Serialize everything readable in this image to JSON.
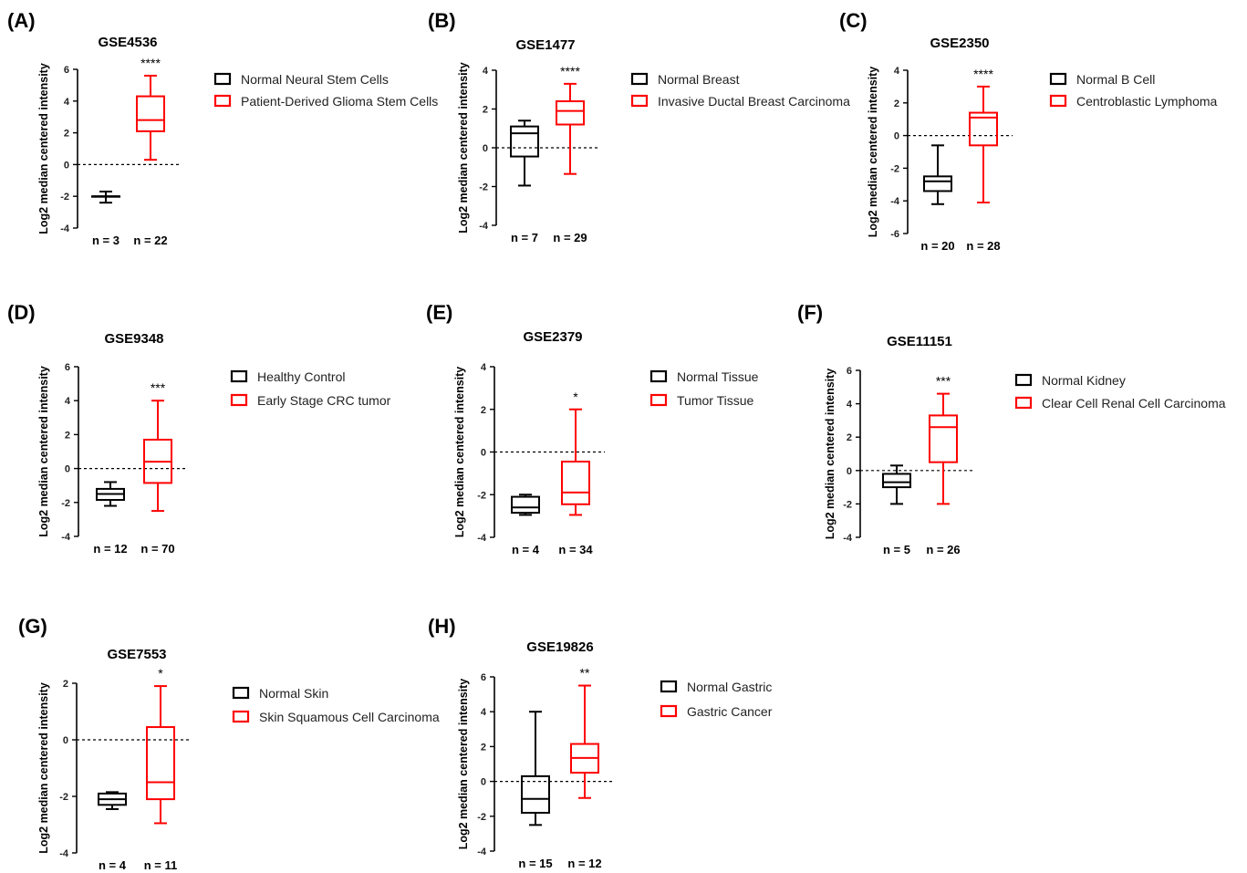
{
  "figure": {
    "colors": {
      "control": "#000000",
      "tumor": "#ff0000"
    }
  },
  "chart_data": [
    {
      "type": "box",
      "panel": "(A)",
      "title": "GSE4536",
      "ylabel": "Log2 median centered intensity",
      "ylim": [
        -4,
        6
      ],
      "yticks": [
        6,
        4,
        2,
        0,
        -2,
        -4
      ],
      "groups": [
        {
          "legend": "Normal Neural Stem Cells",
          "n_label": "n = 3",
          "color": "#000000",
          "whisker_low": -2.4,
          "q1": -2.0,
          "median": -2.0,
          "q3": -2.0,
          "whisker_high": -1.7
        },
        {
          "legend": "Patient-Derived Glioma Stem Cells",
          "n_label": "n = 22",
          "color": "#ff0000",
          "whisker_low": 0.3,
          "q1": 2.1,
          "median": 2.8,
          "q3": 4.3,
          "whisker_high": 5.6
        }
      ],
      "significance": "****"
    },
    {
      "type": "box",
      "panel": "(B)",
      "title": "GSE1477",
      "ylabel": "Log2 median centered intensity",
      "ylim": [
        -4,
        4
      ],
      "yticks": [
        4,
        2,
        0,
        -2,
        -4
      ],
      "groups": [
        {
          "legend": "Normal Breast",
          "n_label": "n = 7",
          "color": "#000000",
          "whisker_low": -1.95,
          "q1": -0.45,
          "median": 0.75,
          "q3": 1.1,
          "whisker_high": 1.4
        },
        {
          "legend": "Invasive Ductal Breast Carcinoma",
          "n_label": "n = 29",
          "color": "#ff0000",
          "whisker_low": -1.35,
          "q1": 1.2,
          "median": 1.9,
          "q3": 2.4,
          "whisker_high": 3.3
        }
      ],
      "significance": "****"
    },
    {
      "type": "box",
      "panel": "(C)",
      "title": "GSE2350",
      "ylabel": "Log2 median centered intensity",
      "ylim": [
        -6,
        4
      ],
      "yticks": [
        4,
        2,
        0,
        -2,
        -4,
        -6
      ],
      "groups": [
        {
          "legend": "Normal B Cell",
          "n_label": "n = 20",
          "color": "#000000",
          "whisker_low": -4.2,
          "q1": -3.4,
          "median": -2.8,
          "q3": -2.5,
          "whisker_high": -0.6
        },
        {
          "legend": "Centroblastic Lymphoma",
          "n_label": "n = 28",
          "color": "#ff0000",
          "whisker_low": -4.1,
          "q1": -0.6,
          "median": 1.1,
          "q3": 1.4,
          "whisker_high": 3.0
        }
      ],
      "significance": "****"
    },
    {
      "type": "box",
      "panel": "(D)",
      "title": "GSE9348",
      "ylabel": "Log2 median centered intensity",
      "ylim": [
        -4,
        6
      ],
      "yticks": [
        6,
        4,
        2,
        0,
        -2,
        -4
      ],
      "groups": [
        {
          "legend": "Healthy Control",
          "n_label": "n = 12",
          "color": "#000000",
          "whisker_low": -2.2,
          "q1": -1.85,
          "median": -1.5,
          "q3": -1.2,
          "whisker_high": -0.8
        },
        {
          "legend": "Early Stage CRC tumor",
          "n_label": "n = 70",
          "color": "#ff0000",
          "whisker_low": -2.5,
          "q1": -0.85,
          "median": 0.4,
          "q3": 1.7,
          "whisker_high": 4.0
        }
      ],
      "significance": "***"
    },
    {
      "type": "box",
      "panel": "(E)",
      "title": "GSE2379",
      "ylabel": "Log2 median centered intensity",
      "ylim": [
        -4,
        4
      ],
      "yticks": [
        4,
        2,
        0,
        -2,
        -4
      ],
      "groups": [
        {
          "legend": "Normal Tissue",
          "n_label": "n = 4",
          "color": "#000000",
          "whisker_low": -2.95,
          "q1": -2.85,
          "median": -2.6,
          "q3": -2.1,
          "whisker_high": -2.0
        },
        {
          "legend": "Tumor Tissue",
          "n_label": "n = 34",
          "color": "#ff0000",
          "whisker_low": -2.95,
          "q1": -2.45,
          "median": -1.9,
          "q3": -0.45,
          "whisker_high": 2.0
        }
      ],
      "significance": "*"
    },
    {
      "type": "box",
      "panel": "(F)",
      "title": "GSE11151",
      "ylabel": "Log2 median centered intensity",
      "ylim": [
        -4,
        6
      ],
      "yticks": [
        6,
        4,
        2,
        0,
        -2,
        -4
      ],
      "groups": [
        {
          "legend": "Normal Kidney",
          "n_label": "n = 5",
          "color": "#000000",
          "whisker_low": -2.0,
          "q1": -1.0,
          "median": -0.7,
          "q3": -0.2,
          "whisker_high": 0.3
        },
        {
          "legend": "Clear Cell Renal Cell Carcinoma",
          "n_label": "n = 26",
          "color": "#ff0000",
          "whisker_low": -2.0,
          "q1": 0.5,
          "median": 2.6,
          "q3": 3.3,
          "whisker_high": 4.6
        }
      ],
      "significance": "***"
    },
    {
      "type": "box",
      "panel": "(G)",
      "title": "GSE7553",
      "ylabel": "Log2 median centered intensity",
      "ylim": [
        -4,
        2
      ],
      "yticks": [
        2,
        0,
        -2,
        -4
      ],
      "groups": [
        {
          "legend": "Normal Skin",
          "n_label": "n = 4",
          "color": "#000000",
          "whisker_low": -2.45,
          "q1": -2.3,
          "median": -2.1,
          "q3": -1.9,
          "whisker_high": -1.85
        },
        {
          "legend": "Skin Squamous Cell Carcinoma",
          "n_label": "n = 11",
          "color": "#ff0000",
          "whisker_low": -2.95,
          "q1": -2.1,
          "median": -1.5,
          "q3": 0.45,
          "whisker_high": 1.9
        }
      ],
      "significance": "*"
    },
    {
      "type": "box",
      "panel": "(H)",
      "title": "GSE19826",
      "ylabel": "Log2 median centered intensity",
      "ylim": [
        -4,
        6
      ],
      "yticks": [
        6,
        4,
        2,
        0,
        -2,
        -4
      ],
      "groups": [
        {
          "legend": "Normal Gastric",
          "n_label": "n = 15",
          "color": "#000000",
          "whisker_low": -2.5,
          "q1": -1.8,
          "median": -1.0,
          "q3": 0.3,
          "whisker_high": 4.0
        },
        {
          "legend": "Gastric Cancer",
          "n_label": "n = 12",
          "color": "#ff0000",
          "whisker_low": -0.95,
          "q1": 0.5,
          "median": 1.35,
          "q3": 2.15,
          "whisker_high": 5.5
        }
      ],
      "significance": "**"
    }
  ]
}
